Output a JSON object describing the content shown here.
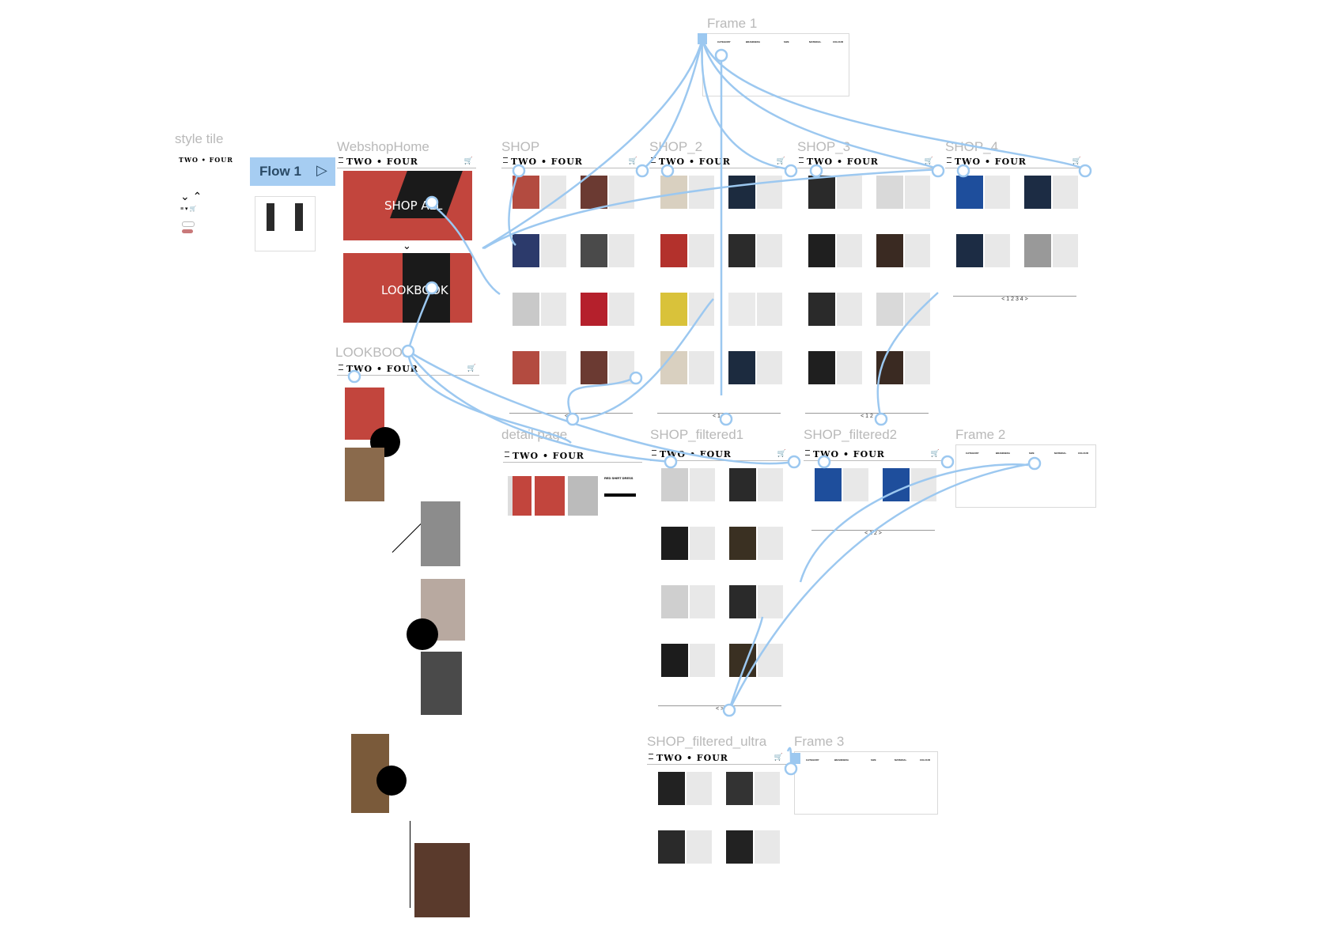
{
  "frames": {
    "style_tile": "style tile",
    "webshop_home": "WebshopHome",
    "shop": "SHOP",
    "shop_2": "SHOP_2",
    "shop_3": "SHOP_3",
    "shop_4": "SHOP_4",
    "frame_1": "Frame 1",
    "lookbook": "LOOKBOOK",
    "detail_page": "detail page",
    "shop_filtered1": "SHOP_filtered1",
    "shop_filtered2": "SHOP_filtered2",
    "frame_2": "Frame 2",
    "shop_filtered_ultra": "SHOP_filtered_ultra",
    "frame_3": "Frame 3"
  },
  "flow": {
    "label": "Flow 1"
  },
  "brand": {
    "logo": "TWO • FOUR"
  },
  "home": {
    "shop_all": "SHOP ALL",
    "lookbook": "LOOKBOOK"
  },
  "pager": {
    "shop": "< 1 >",
    "shop_2": "< 1 >",
    "shop_3": "< 1 2",
    "shop_4": "< 1 2 3 4 >",
    "filtered1": "< >",
    "filtered2": "< 1 2 >"
  },
  "detail": {
    "title": "RED SHIRT DRESS"
  },
  "filters": {
    "columns": [
      "CATEGORY",
      "BRAND/ERA",
      "SIZE",
      "MATERIAL",
      "COLOUR"
    ]
  },
  "colors": {
    "wire": "#9cc8f0",
    "flow_bg": "#a6cdf2",
    "label": "#b9b9b9"
  }
}
